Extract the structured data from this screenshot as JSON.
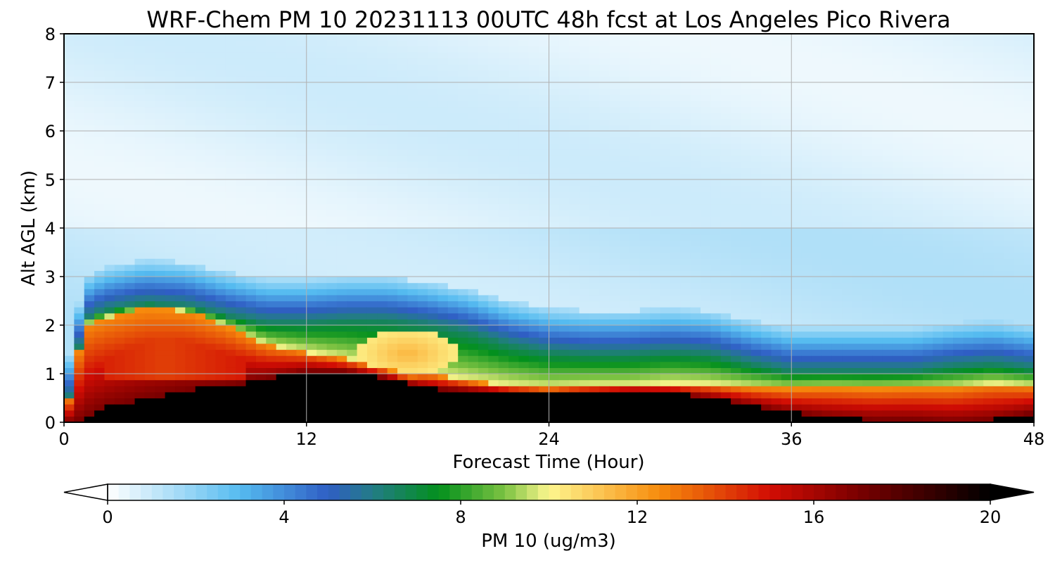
{
  "chart_data": {
    "type": "heatmap",
    "title": "WRF-Chem PM 10  20231113 00UTC 48h fcst at Los Angeles Pico Rivera",
    "xlabel": "Forecast Time (Hour)",
    "ylabel": "Alt AGL (km)",
    "xlim": [
      0,
      48
    ],
    "ylim": [
      0,
      8
    ],
    "xticks": [
      "0",
      "12",
      "24",
      "36",
      "48"
    ],
    "yticks": [
      "0",
      "1",
      "2",
      "3",
      "4",
      "5",
      "6",
      "7",
      "8"
    ],
    "grid": true,
    "colorbar": {
      "label": "PM 10  (ug/m3)",
      "range": [
        0,
        20
      ],
      "extend": "both",
      "ticks": [
        "0",
        "4",
        "8",
        "12",
        "16",
        "20"
      ],
      "stops": [
        {
          "v": 0,
          "c": "#ffffff"
        },
        {
          "v": 2,
          "c": "#8ed2f5"
        },
        {
          "v": 3,
          "c": "#55bbf0"
        },
        {
          "v": 5,
          "c": "#2f5ec4"
        },
        {
          "v": 6,
          "c": "#237c86"
        },
        {
          "v": 7.5,
          "c": "#03901d"
        },
        {
          "v": 9,
          "c": "#7cc242"
        },
        {
          "v": 10,
          "c": "#fdf68e"
        },
        {
          "v": 11,
          "c": "#fccb5a"
        },
        {
          "v": 12.5,
          "c": "#f78c0c"
        },
        {
          "v": 15,
          "c": "#d20d04"
        },
        {
          "v": 17,
          "c": "#7a0000"
        },
        {
          "v": 20,
          "c": "#000000"
        }
      ]
    },
    "profile": {
      "hours": [
        0,
        0.5,
        1,
        2,
        4,
        6,
        8,
        10,
        12,
        14,
        16,
        17,
        18,
        20,
        22,
        24,
        26,
        28,
        30,
        32,
        34,
        36,
        38,
        40,
        42,
        44,
        46,
        48
      ],
      "pbl_top_km": [
        0,
        1.0,
        2.0,
        2.15,
        2.35,
        2.3,
        2.0,
        1.6,
        1.45,
        1.3,
        1.1,
        0.95,
        1.0,
        0.85,
        0.75,
        0.7,
        0.75,
        0.75,
        0.8,
        0.78,
        0.72,
        0.7,
        0.72,
        0.7,
        0.72,
        0.72,
        0.8,
        0.75
      ],
      "green_top_km": [
        0,
        1.0,
        2.1,
        2.3,
        2.45,
        2.4,
        2.2,
        2.05,
        2.05,
        2.1,
        2.1,
        2.05,
        2.0,
        1.85,
        1.6,
        1.45,
        1.4,
        1.4,
        1.45,
        1.4,
        1.2,
        1.05,
        1.05,
        1.05,
        1.05,
        1.15,
        1.2,
        1.1
      ],
      "yellow_bulge": {
        "hour": 17,
        "top_km": 1.85,
        "bottom_km": 1.0
      },
      "black_core_km": [
        0,
        0,
        0.1,
        0.3,
        0.5,
        0.65,
        0.75,
        0.9,
        1.05,
        1.05,
        0.9,
        0.8,
        0.7,
        0.65,
        0.6,
        0.6,
        0.6,
        0.65,
        0.6,
        0.5,
        0.35,
        0.2,
        0.1,
        0.05,
        0.05,
        0.0,
        0.05,
        0.2
      ]
    }
  }
}
